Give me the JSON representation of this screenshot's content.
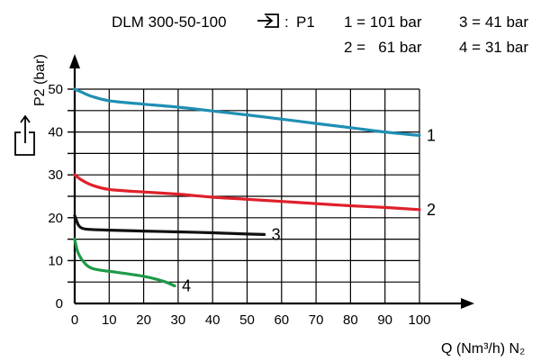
{
  "chart_data": {
    "type": "line",
    "model": "DLM 300-50-100",
    "inlet_label": "P1",
    "pressure_legend": [
      {
        "key": "1 = 101 bar"
      },
      {
        "key": "2 =   61 bar"
      },
      {
        "key": "3 = 41 bar"
      },
      {
        "key": "4 = 31 bar"
      }
    ],
    "ylabel": "P2 (bar)",
    "xlabel": "Q (Nm³/h) N₂",
    "xlim": [
      0,
      100
    ],
    "ylim": [
      0,
      50
    ],
    "xticks": [
      "0",
      "10",
      "20",
      "30",
      "40",
      "50",
      "60",
      "70",
      "80",
      "90",
      "100"
    ],
    "yticks": [
      "0",
      "10",
      "20",
      "30",
      "40",
      "50"
    ],
    "grid": true,
    "series": [
      {
        "name": "1",
        "color": "#1f8fb3",
        "points": [
          [
            0,
            50
          ],
          [
            2,
            49.3
          ],
          [
            5,
            48.3
          ],
          [
            10,
            47.3
          ],
          [
            20,
            46.5
          ],
          [
            30,
            45.8
          ],
          [
            40,
            44.9
          ],
          [
            50,
            44
          ],
          [
            60,
            43
          ],
          [
            70,
            42
          ],
          [
            80,
            41
          ],
          [
            90,
            40
          ],
          [
            100,
            39.2
          ]
        ]
      },
      {
        "name": "2",
        "color": "#e0202a",
        "points": [
          [
            0,
            30
          ],
          [
            2,
            28.8
          ],
          [
            5,
            27.6
          ],
          [
            10,
            26.6
          ],
          [
            20,
            26
          ],
          [
            30,
            25.5
          ],
          [
            40,
            24.8
          ],
          [
            50,
            24.3
          ],
          [
            60,
            23.8
          ],
          [
            70,
            23.3
          ],
          [
            80,
            22.8
          ],
          [
            90,
            22.4
          ],
          [
            100,
            21.9
          ]
        ]
      },
      {
        "name": "3",
        "color": "#111111",
        "points": [
          [
            0,
            20.5
          ],
          [
            1,
            18.4
          ],
          [
            2,
            17.6
          ],
          [
            4,
            17.3
          ],
          [
            10,
            17.1
          ],
          [
            20,
            16.9
          ],
          [
            30,
            16.7
          ],
          [
            40,
            16.5
          ],
          [
            50,
            16.2
          ],
          [
            55,
            16.1
          ]
        ]
      },
      {
        "name": "4",
        "color": "#1e9a48",
        "points": [
          [
            0,
            15
          ],
          [
            1,
            11.8
          ],
          [
            3,
            9.3
          ],
          [
            5,
            8.2
          ],
          [
            8,
            7.7
          ],
          [
            12,
            7.3
          ],
          [
            18,
            6.6
          ],
          [
            22,
            6
          ],
          [
            26,
            5.1
          ],
          [
            29,
            4.1
          ]
        ]
      }
    ]
  }
}
